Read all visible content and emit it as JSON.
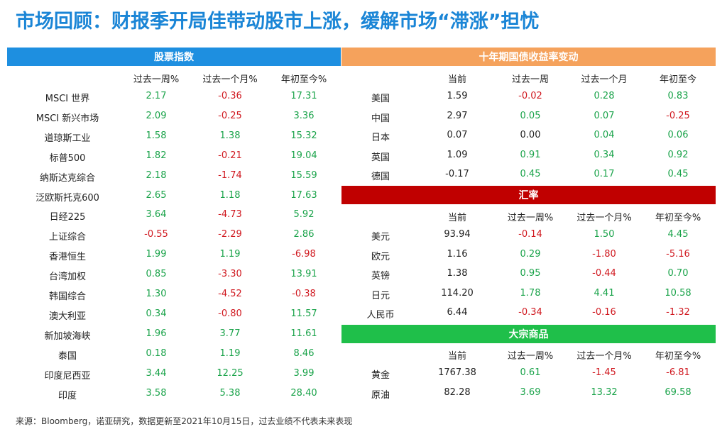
{
  "title": "市场回顾：财报季开局佳带动股市上涨，缓解市场“滞涨”担忧",
  "footer": "来源：Bloomberg，诺亚研究，数据更新至2021年10月15日，过去业绩不代表未来表现",
  "colors": {
    "title": "#1a85d6",
    "stocks_bar": "#1e8fe0",
    "bonds_bar": "#f5a25c",
    "fx_bar": "#c00000",
    "commodities_bar": "#1fbf4a",
    "positive": "#1aa34a",
    "negative": "#d0181f"
  },
  "stocks": {
    "header": "股票指数",
    "columns": [
      "过去一周%",
      "过去一个月%",
      "年初至今%"
    ],
    "rows": [
      {
        "name": "MSCI 世界",
        "v": [
          "2.17",
          "-0.36",
          "17.31"
        ]
      },
      {
        "name": "MSCI 新兴市场",
        "v": [
          "2.09",
          "-0.25",
          "3.36"
        ]
      },
      {
        "name": "道琼斯工业",
        "v": [
          "1.58",
          "1.38",
          "15.32"
        ]
      },
      {
        "name": "标普500",
        "v": [
          "1.82",
          "-0.21",
          "19.04"
        ]
      },
      {
        "name": "纳斯达克综合",
        "v": [
          "2.18",
          "-1.74",
          "15.59"
        ]
      },
      {
        "name": "泛欧斯托克600",
        "v": [
          "2.65",
          "1.18",
          "17.63"
        ]
      },
      {
        "name": "日经225",
        "v": [
          "3.64",
          "-4.73",
          "5.92"
        ]
      },
      {
        "name": "上证综合",
        "v": [
          "-0.55",
          "-2.29",
          "2.86"
        ]
      },
      {
        "name": "香港恒生",
        "v": [
          "1.99",
          "1.19",
          "-6.98"
        ]
      },
      {
        "name": "台湾加权",
        "v": [
          "0.85",
          "-3.30",
          "13.91"
        ]
      },
      {
        "name": "韩国综合",
        "v": [
          "1.30",
          "-4.52",
          "-0.38"
        ]
      },
      {
        "name": "澳大利亚",
        "v": [
          "0.34",
          "-0.80",
          "11.57"
        ]
      },
      {
        "name": "新加坡海峡",
        "v": [
          "1.96",
          "3.77",
          "11.61"
        ]
      },
      {
        "name": "泰国",
        "v": [
          "0.18",
          "1.19",
          "8.46"
        ]
      },
      {
        "name": "印度尼西亚",
        "v": [
          "3.44",
          "12.25",
          "3.99"
        ]
      },
      {
        "name": "印度",
        "v": [
          "3.58",
          "5.38",
          "28.40"
        ]
      }
    ]
  },
  "bonds": {
    "header": "十年期国债收益率变动",
    "columns": [
      "当前",
      "过去一周",
      "过去一个月",
      "年初至今"
    ],
    "rows": [
      {
        "name": "美国",
        "v": [
          "1.59",
          "-0.02",
          "0.28",
          "0.83"
        ]
      },
      {
        "name": "中国",
        "v": [
          "2.97",
          "0.05",
          "0.07",
          "-0.25"
        ]
      },
      {
        "name": "日本",
        "v": [
          "0.07",
          "0.00",
          "0.04",
          "0.06"
        ]
      },
      {
        "name": "英国",
        "v": [
          "1.09",
          "0.91",
          "0.34",
          "0.92"
        ]
      },
      {
        "name": "德国",
        "v": [
          "-0.17",
          "0.45",
          "0.17",
          "0.45"
        ]
      }
    ]
  },
  "fx": {
    "header": "汇率",
    "columns": [
      "当前",
      "过去一周%",
      "过去一个月%",
      "年初至今%"
    ],
    "rows": [
      {
        "name": "美元",
        "v": [
          "93.94",
          "-0.14",
          "1.50",
          "4.45"
        ]
      },
      {
        "name": "欧元",
        "v": [
          "1.16",
          "0.29",
          "-1.80",
          "-5.16"
        ]
      },
      {
        "name": "英镑",
        "v": [
          "1.38",
          "0.95",
          "-0.44",
          "0.70"
        ]
      },
      {
        "name": "日元",
        "v": [
          "114.20",
          "1.78",
          "4.41",
          "10.58"
        ]
      },
      {
        "name": "人民币",
        "v": [
          "6.44",
          "-0.34",
          "-0.16",
          "-1.32"
        ]
      }
    ]
  },
  "commodities": {
    "header": "大宗商品",
    "columns": [
      "当前",
      "过去一周%",
      "过去一个月%",
      "年初至今%"
    ],
    "rows": [
      {
        "name": "黄金",
        "v": [
          "1767.38",
          "0.61",
          "-1.45",
          "-6.81"
        ]
      },
      {
        "name": "原油",
        "v": [
          "82.28",
          "3.69",
          "13.32",
          "69.58"
        ]
      }
    ]
  }
}
